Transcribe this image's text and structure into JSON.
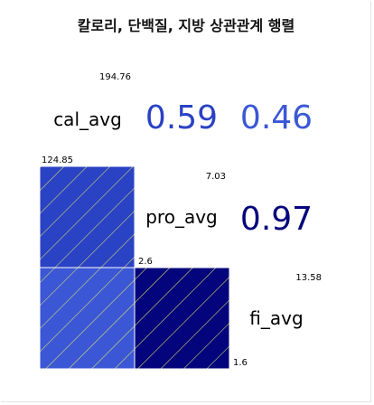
{
  "chart_data": {
    "type": "heatmap",
    "title": "칼로리, 단백질, 지방 상관관계 행렬",
    "variables": [
      "cal_avg",
      "pro_avg",
      "fi_avg"
    ],
    "ranges": [
      {
        "max": "194.76",
        "min": "124.85"
      },
      {
        "max": "7.03",
        "min": "2.6"
      },
      {
        "max": "13.58",
        "min": "1.6"
      }
    ],
    "correlations": [
      {
        "row": 0,
        "col": 1,
        "value": 0.59,
        "label": "0.59",
        "color": "#2a42c4"
      },
      {
        "row": 0,
        "col": 2,
        "value": 0.46,
        "label": "0.46",
        "color": "#3b57d6"
      },
      {
        "row": 1,
        "col": 2,
        "value": 0.97,
        "label": "0.97",
        "color": "#04047c"
      }
    ],
    "lower_cells": [
      {
        "row": 1,
        "col": 0,
        "value": 0.59,
        "color": "#2a42c4",
        "pattern": "diagonal-lines"
      },
      {
        "row": 2,
        "col": 0,
        "value": 0.46,
        "color": "#3b57d6",
        "pattern": "diagonal-lines"
      },
      {
        "row": 2,
        "col": 1,
        "value": 0.97,
        "color": "#04047c",
        "pattern": "diagonal-lines"
      }
    ],
    "hatch_color": "#e0e26a"
  }
}
